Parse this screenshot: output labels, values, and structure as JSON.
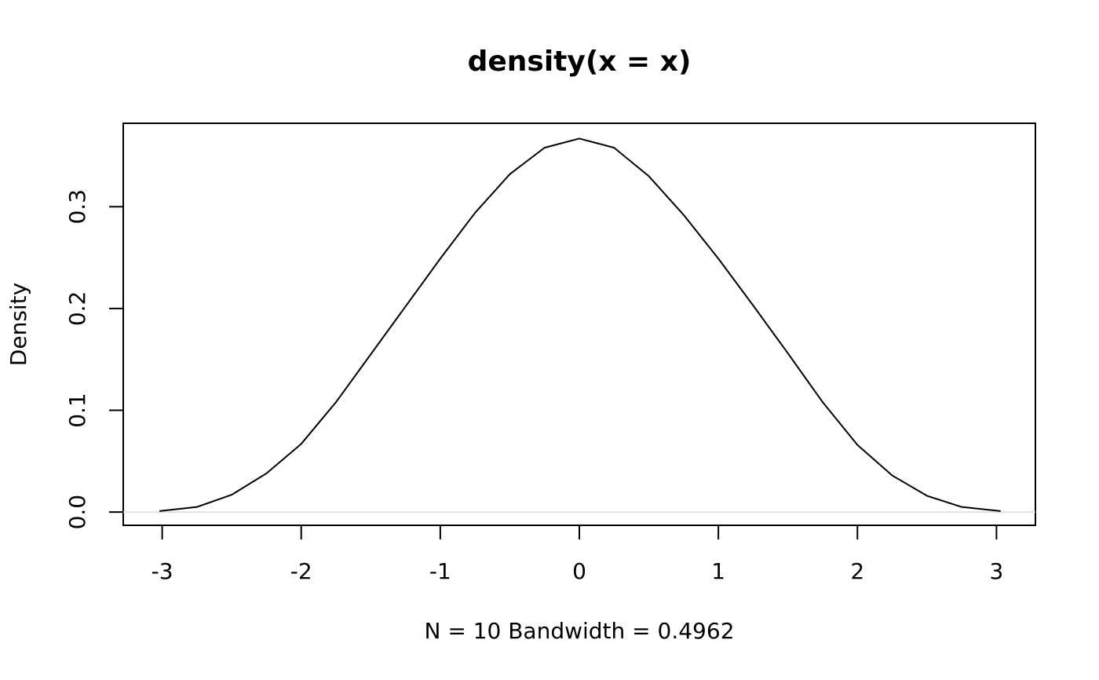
{
  "chart_data": {
    "type": "line",
    "title": "density(x = x)",
    "xlabel": "N = 10   Bandwidth = 0.4962",
    "ylabel": "Density",
    "x": [
      -3.02,
      -2.75,
      -2.5,
      -2.25,
      -2,
      -1.75,
      -1.5,
      -1.25,
      -1,
      -0.75,
      -0.5,
      -0.25,
      0,
      0.25,
      0.5,
      0.75,
      1,
      1.25,
      1.5,
      1.75,
      2,
      2.25,
      2.5,
      2.75,
      3.03
    ],
    "series": [
      {
        "color": "#000000",
        "values": [
          0.001,
          0.005,
          0.017,
          0.038,
          0.067,
          0.108,
          0.155,
          0.202,
          0.249,
          0.294,
          0.332,
          0.358,
          0.367,
          0.358,
          0.33,
          0.292,
          0.249,
          0.203,
          0.156,
          0.108,
          0.066,
          0.036,
          0.016,
          0.005,
          0.001
        ]
      }
    ],
    "xlim": [
      -3.28,
      3.28
    ],
    "ylim": [
      -0.013,
      0.382
    ],
    "xticks": [
      -3,
      -2,
      -1,
      0,
      1,
      2,
      3
    ],
    "yticks": [
      {
        "value": 0,
        "label": "0.0"
      },
      0.1,
      0.2,
      0.3
    ]
  }
}
